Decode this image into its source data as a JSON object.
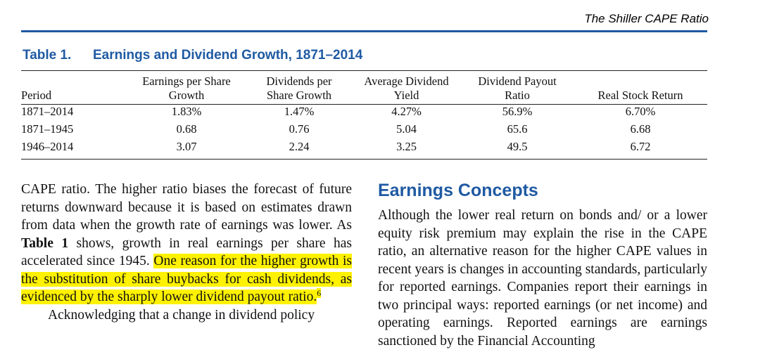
{
  "running_head": "The Shiller CAPE Ratio",
  "table": {
    "number": "Table 1.",
    "title": "Earnings and Dividend Growth, 1871–2014",
    "headers": [
      {
        "line1": "",
        "line2": "Period"
      },
      {
        "line1": "Earnings per Share",
        "line2": "Growth"
      },
      {
        "line1": "Dividends per",
        "line2": "Share Growth"
      },
      {
        "line1": "Average Dividend",
        "line2": "Yield"
      },
      {
        "line1": "Dividend Payout",
        "line2": "Ratio"
      },
      {
        "line1": "",
        "line2": "Real Stock Return"
      }
    ],
    "rows": [
      [
        "1871–2014",
        "1.83%",
        "1.47%",
        "4.27%",
        "56.9%",
        "6.70%"
      ],
      [
        "1871–1945",
        "0.68",
        "0.76",
        "5.04",
        "65.6",
        "6.68"
      ],
      [
        "1946–2014",
        "3.07",
        "2.24",
        "3.25",
        "49.5",
        "6.72"
      ]
    ]
  },
  "left_column": {
    "para1_before_bold": "CAPE ratio. The higher ratio biases the forecast of future returns downward because it is based on estimates drawn from data when the growth rate of earnings was lower. As ",
    "para1_bold": "Table 1",
    "para1_after_bold": " shows, growth in real earnings per share has accelerated since 1945. ",
    "para1_highlighted": "One reason for the higher growth is the substitution of share buybacks for cash dividends, as evidenced by the sharply lower dividend payout ratio.",
    "footnote_mark": "6",
    "para2": "Acknowledging that a change in dividend policy"
  },
  "right_column": {
    "section_title": "Earnings Concepts",
    "paragraph": "Although the lower real return on bonds and/ or a lower equity risk premium may explain the rise in the CAPE ratio, an alternative reason for the higher CAPE values in recent years is changes in accounting standards, particularly for reported earnings. Companies report their earnings in two principal ways: reported earnings (or net income) and operating earnings. Reported earnings are earnings sanctioned by the Financial Accounting"
  },
  "colors": {
    "accent_blue": "#1f5aa3",
    "highlight_yellow": "#fff200"
  }
}
